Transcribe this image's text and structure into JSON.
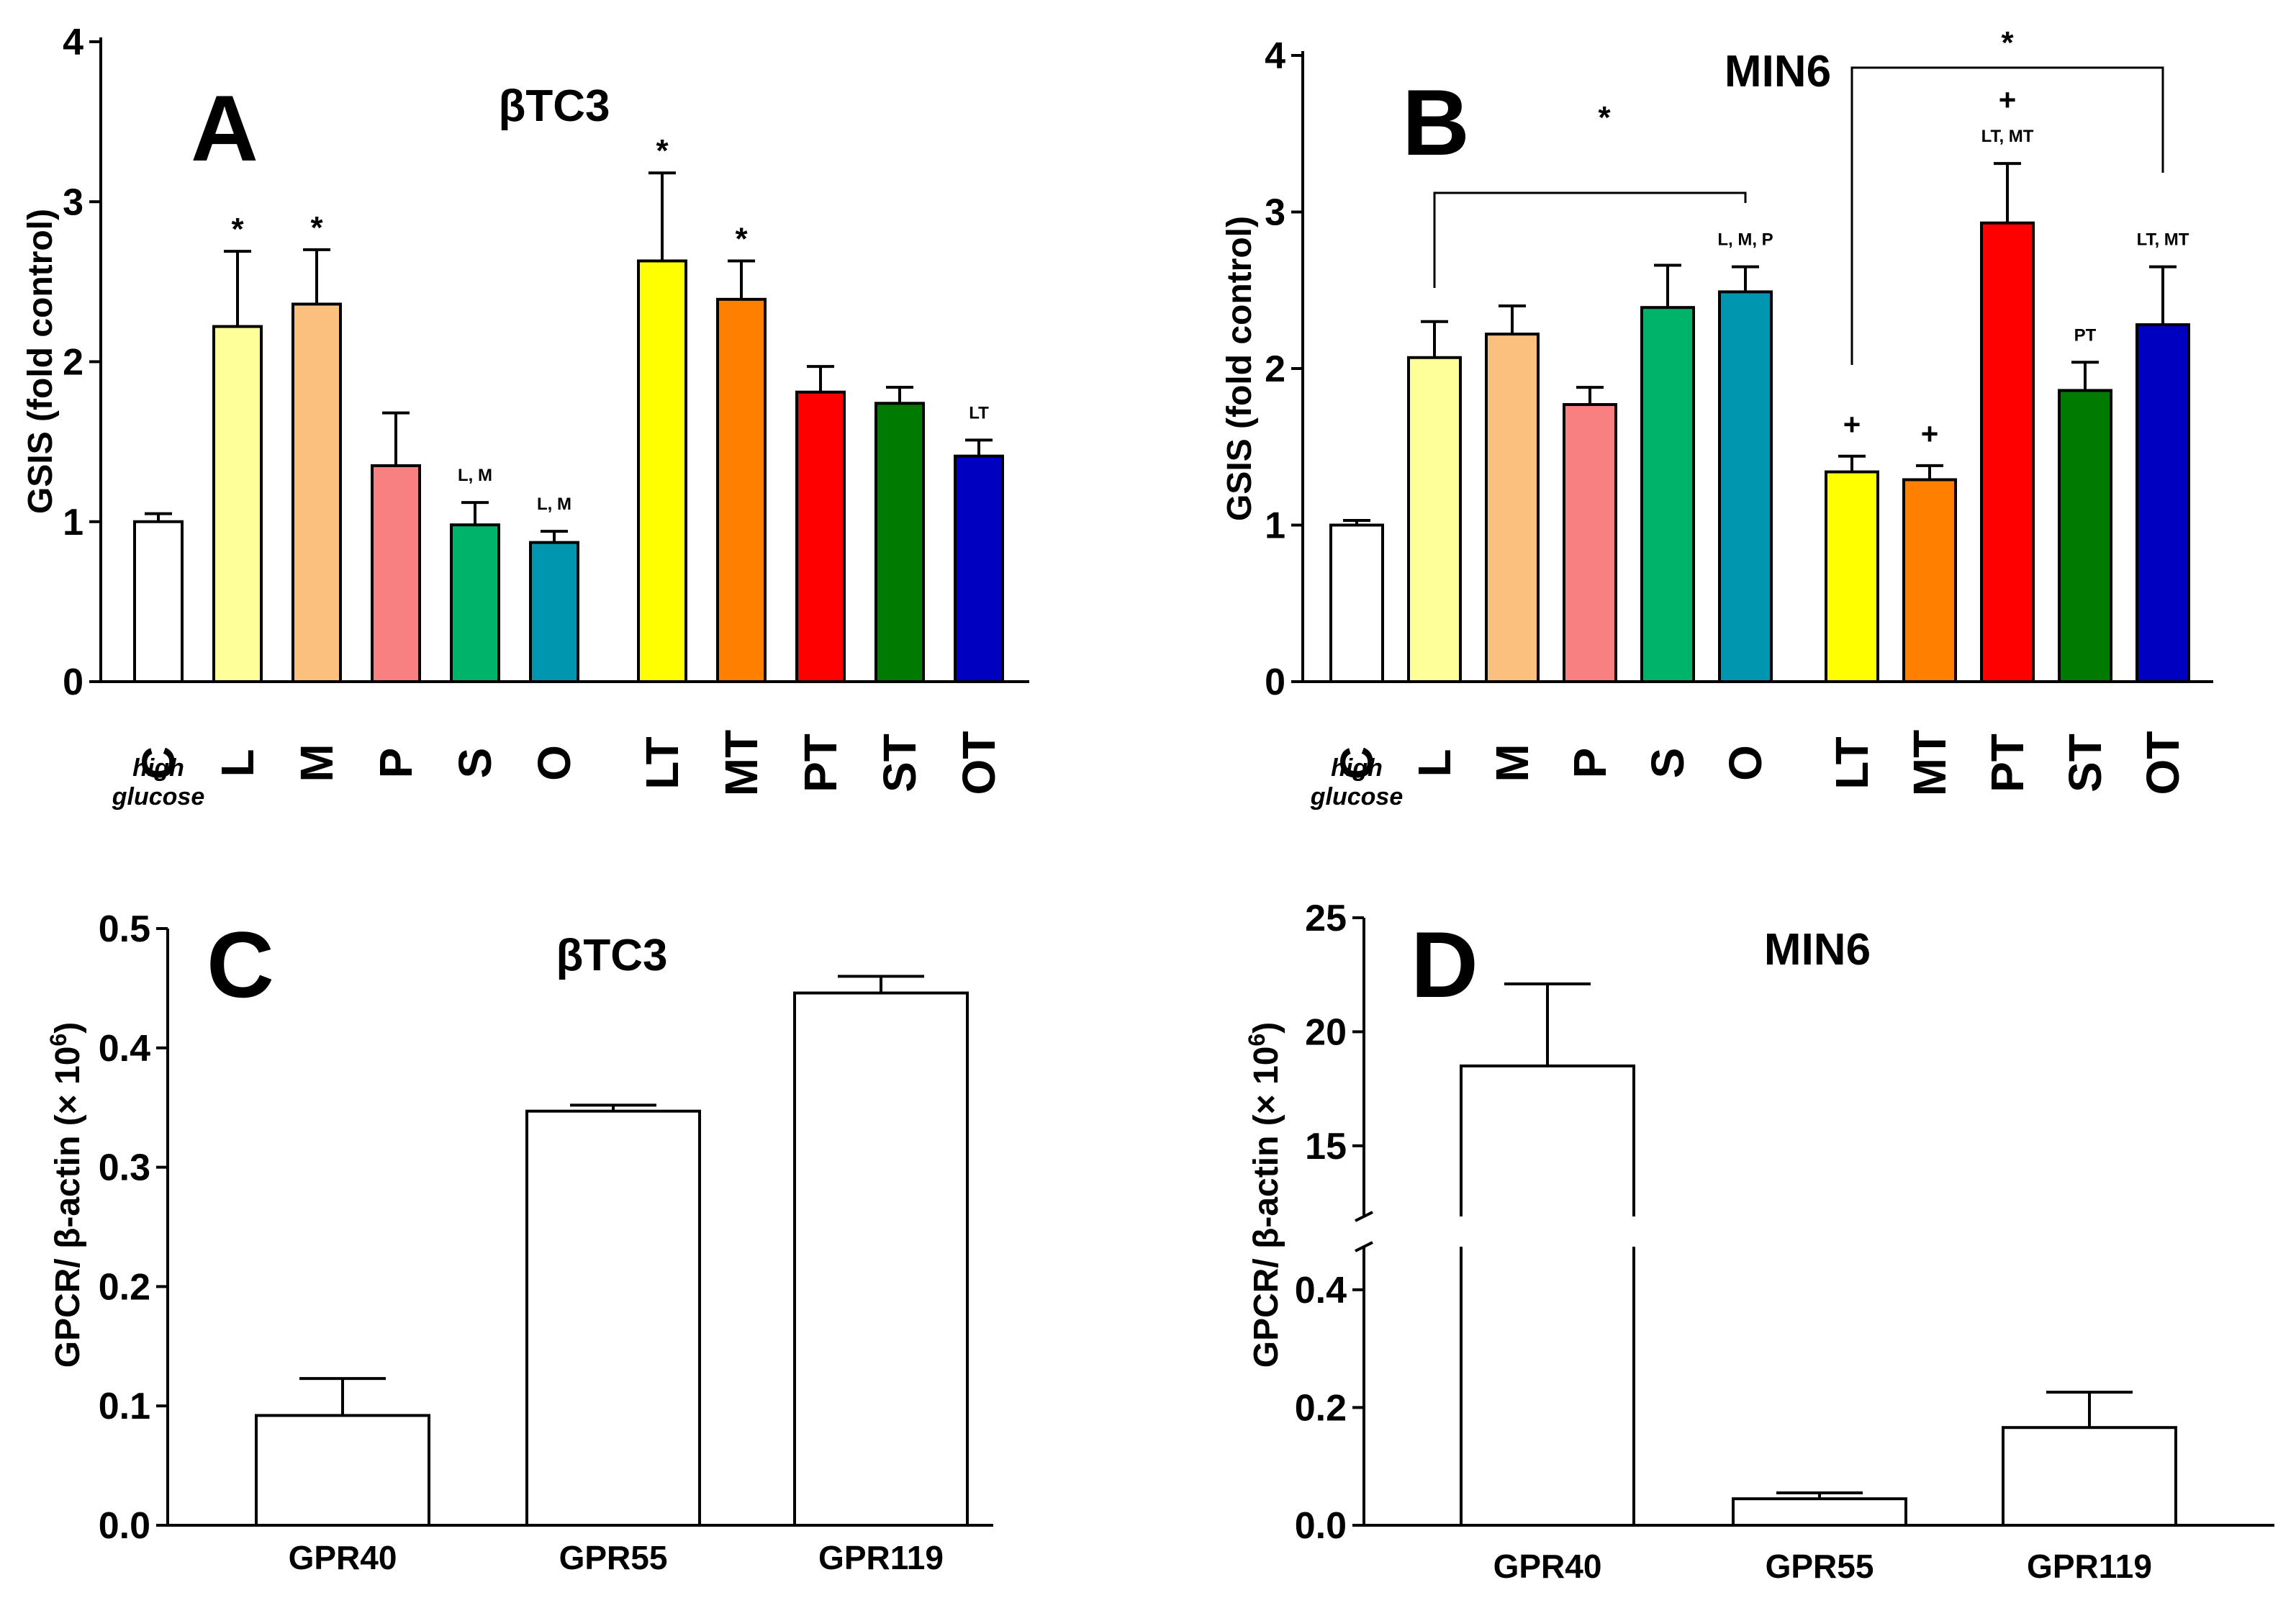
{
  "chart_data": [
    {
      "id": "A",
      "type": "bar",
      "panel_letter": "A",
      "title": "βTC3",
      "ylabel": "GSIS (fold control)",
      "ylim": [
        0,
        4
      ],
      "yticks": [
        "0",
        "1",
        "2",
        "3",
        "4"
      ],
      "categories": [
        "C",
        "L",
        "M",
        "P",
        "S",
        "O",
        "LT",
        "MT",
        "PT",
        "ST",
        "OT"
      ],
      "control_sublabel": [
        "high",
        "glucose"
      ],
      "values": [
        1.0,
        2.22,
        2.36,
        1.35,
        0.98,
        0.87,
        2.63,
        2.39,
        1.81,
        1.74,
        1.41
      ],
      "errors": [
        0.05,
        0.47,
        0.34,
        0.33,
        0.14,
        0.07,
        0.55,
        0.24,
        0.16,
        0.1,
        0.1
      ],
      "colors": [
        "#ffffff",
        "#ffff99",
        "#fbbf7e",
        "#f88080",
        "#00b36b",
        "#0096b0",
        "#ffff00",
        "#ff7f00",
        "#ff0000",
        "#007a00",
        "#0000c0"
      ],
      "annotations": [
        {
          "category": "L",
          "text": "*"
        },
        {
          "category": "M",
          "text": "*"
        },
        {
          "category": "S",
          "text": "L, M"
        },
        {
          "category": "O",
          "text": "L, M"
        },
        {
          "category": "LT",
          "text": "*"
        },
        {
          "category": "MT",
          "text": "*"
        },
        {
          "category": "OT",
          "text": "LT"
        }
      ]
    },
    {
      "id": "B",
      "type": "bar",
      "panel_letter": "B",
      "title": "MIN6",
      "ylabel": "GSIS (fold control)",
      "ylim": [
        0,
        4
      ],
      "yticks": [
        "0",
        "1",
        "2",
        "3",
        "4"
      ],
      "categories": [
        "C",
        "L",
        "M",
        "P",
        "S",
        "O",
        "LT",
        "MT",
        "PT",
        "ST",
        "OT"
      ],
      "control_sublabel": [
        "high",
        "glucose"
      ],
      "values": [
        1.0,
        2.07,
        2.22,
        1.77,
        2.39,
        2.49,
        1.34,
        1.29,
        2.93,
        1.86,
        2.28
      ],
      "errors": [
        0.03,
        0.23,
        0.18,
        0.11,
        0.27,
        0.16,
        0.1,
        0.09,
        0.38,
        0.18,
        0.37
      ],
      "colors": [
        "#ffffff",
        "#ffff99",
        "#fbbf7e",
        "#f88080",
        "#00b36b",
        "#0096b0",
        "#ffff00",
        "#ff7f00",
        "#ff0000",
        "#007a00",
        "#0000c0"
      ],
      "annotations": [
        {
          "category": "O",
          "text": "L, M, P"
        },
        {
          "category": "LT",
          "text": "+"
        },
        {
          "category": "MT",
          "text": "+"
        },
        {
          "category": "PT",
          "text": "LT,  MT"
        },
        {
          "category": "PT",
          "text": "+"
        },
        {
          "category": "ST",
          "text": "PT"
        },
        {
          "category": "OT",
          "text": "LT,  MT"
        }
      ],
      "brackets": [
        {
          "from": "L",
          "to": "O",
          "label": "*"
        },
        {
          "from": "LT",
          "to": "OT",
          "label": "*"
        }
      ]
    },
    {
      "id": "C",
      "type": "bar",
      "panel_letter": "C",
      "title": "βTC3",
      "ylabel_main": "GPCR/ β-actin (× 10",
      "ylabel_sup": "6",
      "ylabel_end": ")",
      "ylim": [
        0,
        0.5
      ],
      "yticks": [
        "0.0",
        "0.1",
        "0.2",
        "0.3",
        "0.4",
        "0.5"
      ],
      "categories": [
        "GPR40",
        "GPR55",
        "GPR119"
      ],
      "values": [
        0.092,
        0.347,
        0.446
      ],
      "errors": [
        0.031,
        0.005,
        0.014
      ]
    },
    {
      "id": "D",
      "type": "bar",
      "panel_letter": "D",
      "title": "MIN6",
      "ylabel_main": "GPCR/ β-actin (× 10",
      "ylabel_sup": "6",
      "ylabel_end": ")",
      "broken_axis": {
        "lower": [
          0,
          0.5
        ],
        "upper": [
          11.9,
          25
        ]
      },
      "yticks_lower": [
        "0.0",
        "0.2",
        "0.4"
      ],
      "yticks_upper": [
        "15",
        "20",
        "25"
      ],
      "categories": [
        "GPR40",
        "GPR55",
        "GPR119"
      ],
      "values": [
        18.5,
        0.045,
        0.166
      ],
      "errors": [
        3.6,
        0.01,
        0.06
      ]
    }
  ]
}
